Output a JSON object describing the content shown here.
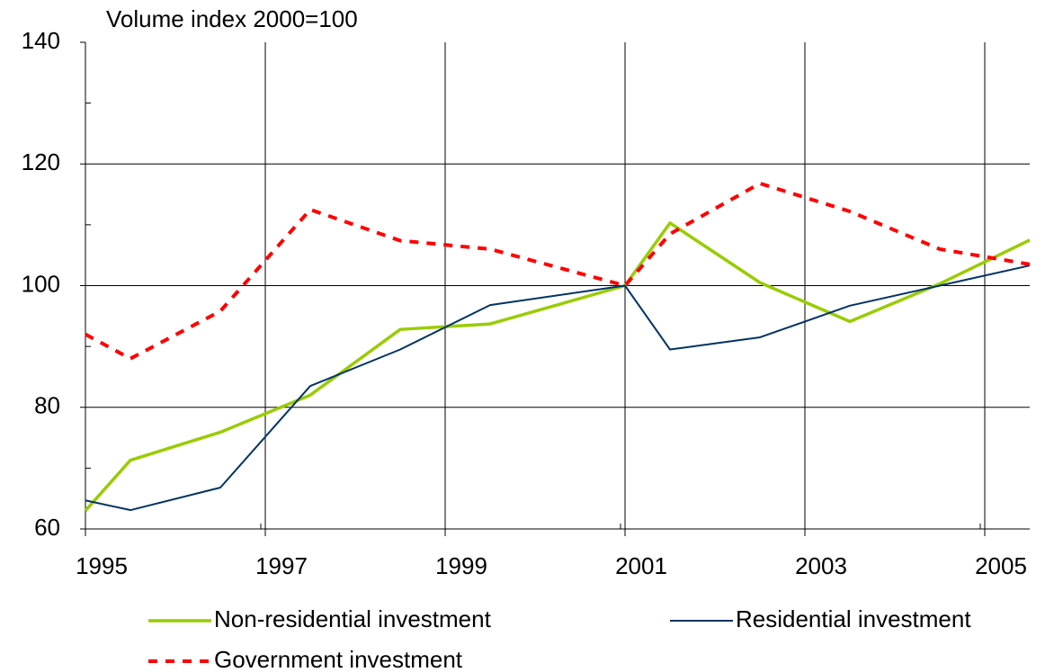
{
  "chart_data": {
    "type": "line",
    "title": "Volume index 2000=100",
    "x": [
      1995,
      1995.5,
      1996.5,
      1997.5,
      1998.5,
      1999.5,
      2001,
      2001.5,
      2002.5,
      2003.5,
      2004.5,
      2005.5
    ],
    "series": [
      {
        "name": "Non-residential investment",
        "color": "#99cc00",
        "dash": false,
        "width": 3.5,
        "values": [
          63,
          71.3,
          75.9,
          82,
          92.8,
          93.7,
          100,
          110.3,
          100.5,
          94.1,
          100.3,
          107.5
        ]
      },
      {
        "name": "Residential investment",
        "color": "#003366",
        "dash": false,
        "width": 2,
        "values": [
          64.7,
          63.1,
          66.8,
          83.5,
          89.5,
          96.8,
          100,
          89.5,
          91.5,
          96.7,
          100,
          103.3
        ]
      },
      {
        "name": "Government investment",
        "color": "#ff0000",
        "dash": true,
        "width": 4,
        "values": [
          92,
          88,
          95.8,
          112.5,
          107.4,
          106,
          100,
          108.5,
          116.8,
          112.2,
          106,
          103.5
        ]
      }
    ],
    "xlim": [
      1995,
      2005.5
    ],
    "xticks": [
      1995,
      1997,
      1999,
      2001,
      2003,
      2005
    ],
    "ylim": [
      60,
      140
    ],
    "yticks": [
      60,
      80,
      100,
      120,
      140
    ],
    "grid": true
  }
}
